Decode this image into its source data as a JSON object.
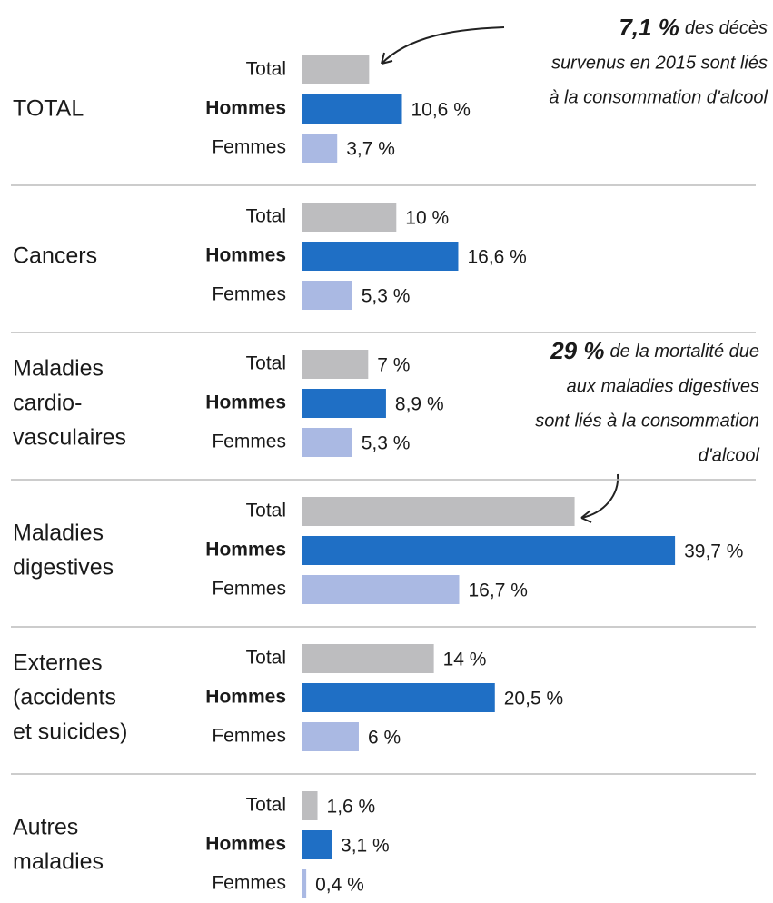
{
  "chart_data": {
    "type": "bar",
    "orientation": "horizontal",
    "categories": [
      [
        "TOTAL"
      ],
      [
        "Cancers"
      ],
      [
        "Maladies",
        "cardio-",
        "vasculaires"
      ],
      [
        "Maladies",
        "digestives"
      ],
      [
        "Externes",
        "(accidents",
        "et suicides)"
      ],
      [
        "Autres",
        "maladies"
      ]
    ],
    "series": [
      {
        "name": "Total",
        "color": "#bdbdbf",
        "values": [
          7.1,
          10,
          7,
          29,
          14,
          1.6
        ],
        "value_labels": [
          null,
          "10 %",
          "7 %",
          null,
          "14 %",
          "1,6 %"
        ]
      },
      {
        "name": "Hommes",
        "color": "#1f6fc5",
        "values": [
          10.6,
          16.6,
          8.9,
          39.7,
          20.5,
          3.1
        ],
        "value_labels": [
          "10,6 %",
          "16,6 %",
          "8,9 %",
          "39,7 %",
          "20,5 %",
          "3,1 %"
        ]
      },
      {
        "name": "Femmes",
        "color": "#aab9e3",
        "values": [
          3.7,
          5.3,
          5.3,
          16.7,
          6,
          0.4
        ],
        "value_labels": [
          "3,7 %",
          "5,3 %",
          "5,3 %",
          "16,7 %",
          "6 %",
          "0,4 %"
        ]
      }
    ],
    "annotations": [
      {
        "bold": "7,1 %",
        "lines": [
          "des décès",
          "survenus en 2015 sont liés",
          "à la consommation d'alcool"
        ]
      },
      {
        "bold": "29 %",
        "lines": [
          "de la mortalité due",
          "aux maladies digestives",
          "sont liés à la consommation",
          "d'alcool"
        ]
      }
    ]
  }
}
